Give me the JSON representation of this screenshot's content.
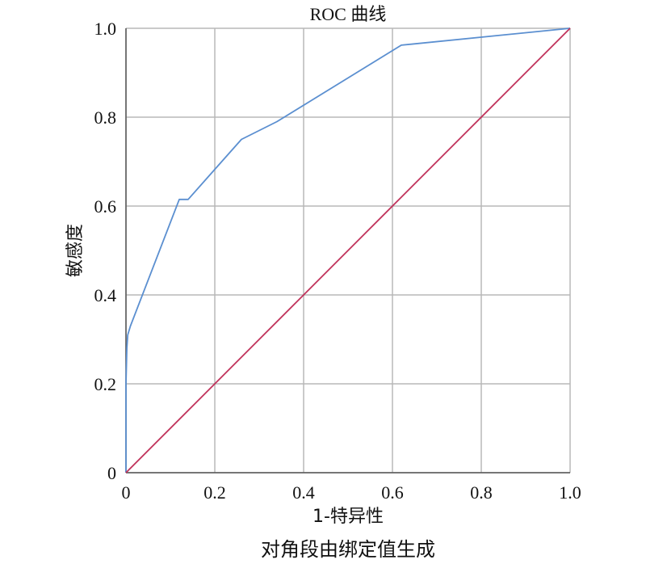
{
  "chart_data": {
    "type": "line",
    "title": "ROC 曲线",
    "xlabel": "1-特异性",
    "ylabel": "敏感度",
    "caption": "对角段由绑定值生成",
    "xlim": [
      0,
      1
    ],
    "ylim": [
      0,
      1
    ],
    "grid": true,
    "x_ticks": [
      "0",
      "0.2",
      "0.4",
      "0.6",
      "0.8",
      "1.0"
    ],
    "y_ticks": [
      "0",
      "0.2",
      "0.4",
      "0.6",
      "0.8",
      "1.0"
    ],
    "series": [
      {
        "color": "#5b8fd0",
        "x": [
          0,
          0,
          0.002,
          0.004,
          0.01,
          0.12,
          0.14,
          0.26,
          0.34,
          0.62,
          1.0
        ],
        "y": [
          0,
          0.2,
          0.28,
          0.31,
          0.33,
          0.615,
          0.615,
          0.75,
          0.79,
          0.962,
          1.0
        ]
      },
      {
        "color": "#c0315a",
        "x": [
          0,
          1
        ],
        "y": [
          0,
          1
        ]
      }
    ]
  }
}
